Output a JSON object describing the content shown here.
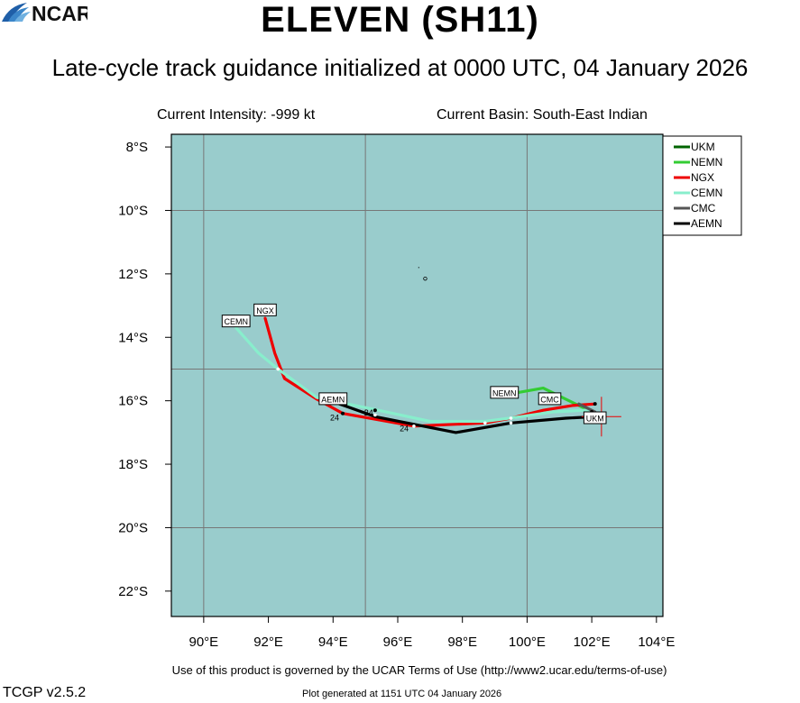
{
  "header": {
    "title": "ELEVEN (SH11)",
    "subtitle": "Late-cycle track guidance initialized at 0000 UTC, 04 January 2026",
    "intensity": "Current Intensity: -999 kt",
    "basin": "Current Basin: South-East Indian"
  },
  "footer": {
    "terms": "Use of this product is governed by the UCAR Terms of Use (http://www2.ucar.edu/terms-of-use)",
    "version": "TCGP v2.5.2",
    "generated": "Plot generated at 1151 UTC   04 January 2026",
    "logo_text": "NCAR"
  },
  "chart_data": {
    "type": "line",
    "xlim": [
      89,
      104.2
    ],
    "ylim": [
      -22.8,
      -7.6
    ],
    "x_ticks": [
      90,
      92,
      94,
      96,
      98,
      100,
      102,
      104
    ],
    "x_tick_labels": [
      "90°E",
      "92°E",
      "94°E",
      "96°E",
      "98°E",
      "100°E",
      "102°E",
      "104°E"
    ],
    "y_ticks": [
      -8,
      -10,
      -12,
      -14,
      -16,
      -18,
      -20,
      -22
    ],
    "y_tick_labels": [
      "8°S",
      "10°S",
      "12°S",
      "14°S",
      "16°S",
      "18°S",
      "20°S",
      "22°S"
    ],
    "grid_lon": [
      90,
      95,
      100
    ],
    "grid_lat": [
      -10,
      -15,
      -20
    ],
    "ocean_color": "#99cccc",
    "grid_color": "#777777",
    "legend_position": "top-right",
    "current_position": [
      102.3,
      -16.5
    ],
    "series": [
      {
        "name": "UKM",
        "color": "#006400",
        "label": "UKM",
        "points": [
          [
            102.0,
            -16.4
          ],
          [
            102.1,
            -16.45
          ]
        ]
      },
      {
        "name": "NEMN",
        "color": "#33cc33",
        "label": "NEMN",
        "points": [
          [
            99.4,
            -15.8
          ],
          [
            100.5,
            -15.6
          ],
          [
            101.2,
            -15.95
          ],
          [
            102.0,
            -16.35
          ]
        ]
      },
      {
        "name": "NGX",
        "color": "#ee0000",
        "label": "NGX",
        "points": [
          [
            91.9,
            -13.4
          ],
          [
            92.2,
            -14.5
          ],
          [
            92.5,
            -15.3
          ],
          [
            93.5,
            -15.95
          ],
          [
            94.3,
            -16.4
          ],
          [
            96.5,
            -16.8
          ],
          [
            98.7,
            -16.7
          ],
          [
            99.5,
            -16.55
          ],
          [
            100.5,
            -16.3
          ],
          [
            101.4,
            -16.15
          ],
          [
            102.1,
            -16.1
          ]
        ]
      },
      {
        "name": "CEMN",
        "color": "#88eecc",
        "label": "CEMN",
        "points": [
          [
            91.0,
            -13.7
          ],
          [
            91.7,
            -14.5
          ],
          [
            92.3,
            -15.0
          ],
          [
            93.5,
            -15.9
          ],
          [
            95.4,
            -16.3
          ],
          [
            97.0,
            -16.65
          ],
          [
            98.7,
            -16.65
          ],
          [
            99.8,
            -16.5
          ],
          [
            100.8,
            -16.35
          ],
          [
            101.8,
            -16.3
          ],
          [
            102.1,
            -16.4
          ]
        ]
      },
      {
        "name": "CMC",
        "color": "#555555",
        "label": "CMC",
        "points": [
          [
            101.6,
            -16.1
          ],
          [
            102.1,
            -16.35
          ]
        ]
      },
      {
        "name": "AEMN",
        "color": "#000000",
        "label": "AEMN",
        "points": [
          [
            94.2,
            -16.1
          ],
          [
            95.3,
            -16.5
          ],
          [
            97.8,
            -17.0
          ],
          [
            99.5,
            -16.7
          ],
          [
            101.2,
            -16.55
          ],
          [
            102.1,
            -16.5
          ]
        ]
      }
    ],
    "track_labels": [
      {
        "text": "CEMN",
        "lon": 91.0,
        "lat": -13.5
      },
      {
        "text": "NGX",
        "lon": 91.9,
        "lat": -13.15
      },
      {
        "text": "AEMN",
        "lon": 94.0,
        "lat": -15.95
      },
      {
        "text": "NEMN",
        "lon": 99.3,
        "lat": -15.75
      },
      {
        "text": "CMC",
        "lon": 100.7,
        "lat": -15.95
      },
      {
        "text": "UKM",
        "lon": 102.1,
        "lat": -16.55
      }
    ],
    "hour_labels": [
      {
        "text": "24",
        "lon": 94.05,
        "lat": -16.5
      },
      {
        "text": "24",
        "lon": 95.1,
        "lat": -16.35
      },
      {
        "text": "24",
        "lon": 96.2,
        "lat": -16.85
      }
    ]
  }
}
